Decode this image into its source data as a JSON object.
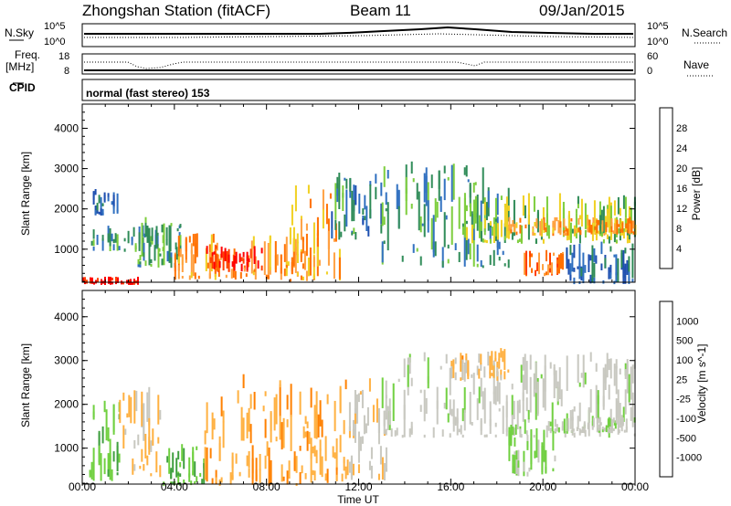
{
  "header": {
    "station": "Zhongshan Station (fitACF)",
    "beam": "Beam 11",
    "date": "09/Jan/2015"
  },
  "panels": {
    "nsky": {
      "left_label": "N.Sky",
      "right_label": "N.Search",
      "left_ticks": [
        "10^5",
        "10^0"
      ],
      "right_ticks": [
        "10^5",
        "10^0"
      ]
    },
    "freq": {
      "left_label_1": "Freq.",
      "left_label_2": "[MHz]",
      "right_label": "Nave",
      "left_ticks": [
        "18",
        "8"
      ],
      "right_ticks": [
        "60",
        "0"
      ]
    },
    "cpid": {
      "label": "CPID",
      "mode": "normal (fast stereo) 153"
    }
  },
  "chart_data": [
    {
      "type": "heatmap",
      "title": "",
      "xlabel": "Time UT",
      "ylabel": "Slant Range [km]",
      "xlim": [
        0,
        24
      ],
      "ylim": [
        180,
        4600
      ],
      "x_ticks": [
        "00:00",
        "04:00",
        "08:00",
        "12:00",
        "16:00",
        "20:00",
        "00:00"
      ],
      "y_ticks": [
        "1000",
        "2000",
        "3000",
        "4000"
      ],
      "colorbar": {
        "label": "Power [dB]",
        "ticks": [
          "28",
          "24",
          "20",
          "16",
          "12",
          "8",
          "4"
        ],
        "range": [
          0,
          30
        ],
        "colors": [
          "#0000ff",
          "#1f4fb0",
          "#3070c0",
          "#2e8b57",
          "#7ccd3c",
          "#f0d020",
          "#ffa040",
          "#ff7000",
          "#ff4000",
          "#ff0000"
        ]
      },
      "regions": [
        {
          "t0": 0.0,
          "t1": 2.4,
          "r0": 180,
          "r1": 320,
          "value": 29
        },
        {
          "t0": 0.3,
          "t1": 4.2,
          "r0": 1000,
          "r1": 1600,
          "value": 10
        },
        {
          "t0": 0.3,
          "t1": 1.5,
          "r0": 1900,
          "r1": 2500,
          "value": 7
        },
        {
          "t0": 2.4,
          "t1": 4.3,
          "r0": 600,
          "r1": 1800,
          "value": 12
        },
        {
          "t0": 4.0,
          "t1": 10.2,
          "r0": 300,
          "r1": 1400,
          "value": 20
        },
        {
          "t0": 5.3,
          "t1": 7.8,
          "r0": 500,
          "r1": 1100,
          "value": 27
        },
        {
          "t0": 9.0,
          "t1": 11.2,
          "r0": 250,
          "r1": 2600,
          "value": 19
        },
        {
          "t0": 10.8,
          "t1": 13.0,
          "r0": 1300,
          "r1": 2900,
          "value": 9
        },
        {
          "t0": 13.0,
          "t1": 18.5,
          "r0": 600,
          "r1": 3200,
          "value": 10
        },
        {
          "t0": 16.5,
          "t1": 24.0,
          "r0": 1200,
          "r1": 2400,
          "value": 14
        },
        {
          "t0": 18.5,
          "t1": 24.0,
          "r0": 1400,
          "r1": 1800,
          "value": 20
        },
        {
          "t0": 19.0,
          "t1": 21.0,
          "r0": 400,
          "r1": 1000,
          "value": 22
        },
        {
          "t0": 21.0,
          "t1": 24.0,
          "r0": 200,
          "r1": 1200,
          "value": 7
        }
      ]
    },
    {
      "type": "heatmap",
      "title": "",
      "xlabel": "Time UT",
      "ylabel": "Slant Range [km]",
      "xlim": [
        0,
        24
      ],
      "ylim": [
        180,
        4600
      ],
      "x_ticks": [
        "00:00",
        "04:00",
        "08:00",
        "12:00",
        "16:00",
        "20:00",
        "00:00"
      ],
      "y_ticks": [
        "1000",
        "2000",
        "3000",
        "4000"
      ],
      "colorbar": {
        "label": "Velocity [m s^-1]",
        "ticks": [
          "1000",
          "500",
          "100",
          "25",
          "-25",
          "-100",
          "-500",
          "-1000"
        ],
        "range": [
          -1200,
          1200
        ],
        "colors": [
          "#ff0000",
          "#ff5000",
          "#ff8000",
          "#ffb040",
          "#c8c8c0",
          "#c8c8c0",
          "#70d040",
          "#40a040",
          "#3a7a5a",
          "#3060a0",
          "#1f3fb0"
        ]
      },
      "regions": [
        {
          "t0": 0.3,
          "t1": 1.6,
          "r0": 300,
          "r1": 2100,
          "value": 300
        },
        {
          "t0": 1.6,
          "t1": 3.5,
          "r0": 400,
          "r1": 2400,
          "value": -350
        },
        {
          "t0": 3.5,
          "t1": 5.3,
          "r0": 200,
          "r1": 1100,
          "value": 300
        },
        {
          "t0": 5.3,
          "t1": 11.5,
          "r0": 200,
          "r1": 2700,
          "value": -500
        },
        {
          "t0": 11.5,
          "t1": 13.2,
          "r0": 300,
          "r1": 2600,
          "value": -300
        },
        {
          "t0": 13.0,
          "t1": 24.0,
          "r0": 1300,
          "r1": 3200,
          "value": 0
        },
        {
          "t0": 16.0,
          "t1": 18.5,
          "r0": 2600,
          "r1": 3300,
          "value": -400
        },
        {
          "t0": 18.5,
          "t1": 20.5,
          "r0": 400,
          "r1": 1600,
          "value": 150
        },
        {
          "t0": 20.5,
          "t1": 23.6,
          "r0": 1400,
          "r1": 1700,
          "value": 0
        }
      ]
    }
  ]
}
